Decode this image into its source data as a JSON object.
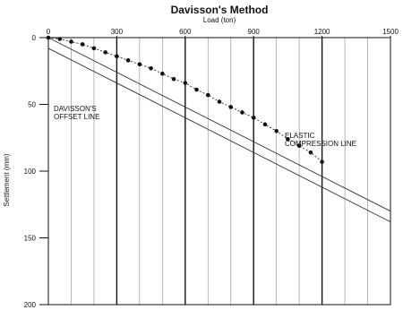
{
  "chart_data": {
    "type": "scatter",
    "title": "Davisson's Method",
    "xlabel": "Load (ton)",
    "ylabel": "Settlement (mm)",
    "xlim": [
      0,
      1500
    ],
    "ylim": [
      0,
      200
    ],
    "y_inverted": true,
    "x_axis_position": "top",
    "x_ticks": [
      0,
      300,
      600,
      900,
      1200,
      1500
    ],
    "y_ticks": [
      0,
      50,
      100,
      150,
      200
    ],
    "grid": "vertical",
    "series": [
      {
        "type": "scatter",
        "x": [
          0,
          50,
          100,
          150,
          200,
          250,
          300,
          350,
          400,
          450,
          500,
          550,
          600,
          650,
          700,
          750,
          800,
          850,
          900,
          950,
          1000,
          1050,
          1100,
          1150,
          1200
        ],
        "y": [
          0,
          1,
          3,
          5,
          8,
          11,
          14,
          17,
          20,
          23,
          27,
          31,
          34,
          39,
          43,
          48,
          52,
          56,
          60,
          65,
          70,
          76,
          81,
          86,
          93
        ]
      },
      {
        "type": "line",
        "label": "ELASTIC COMPRESSION LINE",
        "x": [
          0,
          1500
        ],
        "y": [
          0,
          130
        ]
      },
      {
        "type": "line",
        "label": "DAVISSON'S OFFSET LINE",
        "x": [
          0,
          1500
        ],
        "y": [
          8,
          138
        ]
      }
    ],
    "annotations": [
      {
        "text": "DAVISSON'S",
        "anchor_series": 2
      },
      {
        "text": "OFFSET LINE",
        "anchor_series": 2
      },
      {
        "text": "ELASTIC",
        "anchor_series": 1
      },
      {
        "text": "COMPRESSION LINE",
        "anchor_series": 1
      }
    ]
  }
}
